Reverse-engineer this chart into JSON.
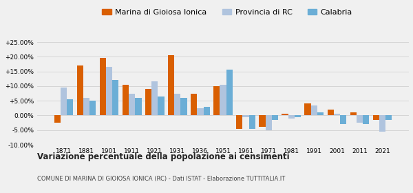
{
  "years": [
    1871,
    1881,
    1901,
    1911,
    1921,
    1931,
    1936,
    1951,
    1961,
    1971,
    1981,
    1991,
    2001,
    2011,
    2021
  ],
  "marina": [
    -2.5,
    17.0,
    19.5,
    10.5,
    9.0,
    20.5,
    7.5,
    10.0,
    -4.5,
    -4.0,
    0.5,
    4.0,
    2.0,
    1.0,
    -1.5
  ],
  "provincia": [
    9.5,
    6.0,
    16.5,
    7.5,
    11.5,
    7.5,
    2.5,
    10.5,
    -0.5,
    -5.0,
    -1.0,
    3.5,
    0.5,
    -2.5,
    -5.5
  ],
  "calabria": [
    5.5,
    5.0,
    12.0,
    6.0,
    6.5,
    6.0,
    3.0,
    15.5,
    -4.5,
    -1.5,
    -0.5,
    1.0,
    -3.0,
    -3.0,
    -1.5
  ],
  "marina_color": "#d95f02",
  "provincia_color": "#b0c4de",
  "calabria_color": "#6baed6",
  "title": "Variazione percentuale della popolazione ai censimenti",
  "subtitle": "COMUNE DI MARINA DI GIOIOSA IONICA (RC) - Dati ISTAT - Elaborazione TUTTITALIA.IT",
  "legend_labels": [
    "Marina di Gioiosa Ionica",
    "Provincia di RC",
    "Calabria"
  ],
  "ylim": [
    -10.0,
    27.5
  ],
  "yticks": [
    -10.0,
    -5.0,
    0.0,
    5.0,
    10.0,
    15.0,
    20.0,
    25.0
  ],
  "ytick_labels": [
    "-10.00%",
    "-5.00%",
    "0.00%",
    "+5.00%",
    "+10.00%",
    "+15.00%",
    "+20.00%",
    "+25.00%"
  ],
  "background_color": "#f0f0f0",
  "grid_color": "#d0d0d0"
}
